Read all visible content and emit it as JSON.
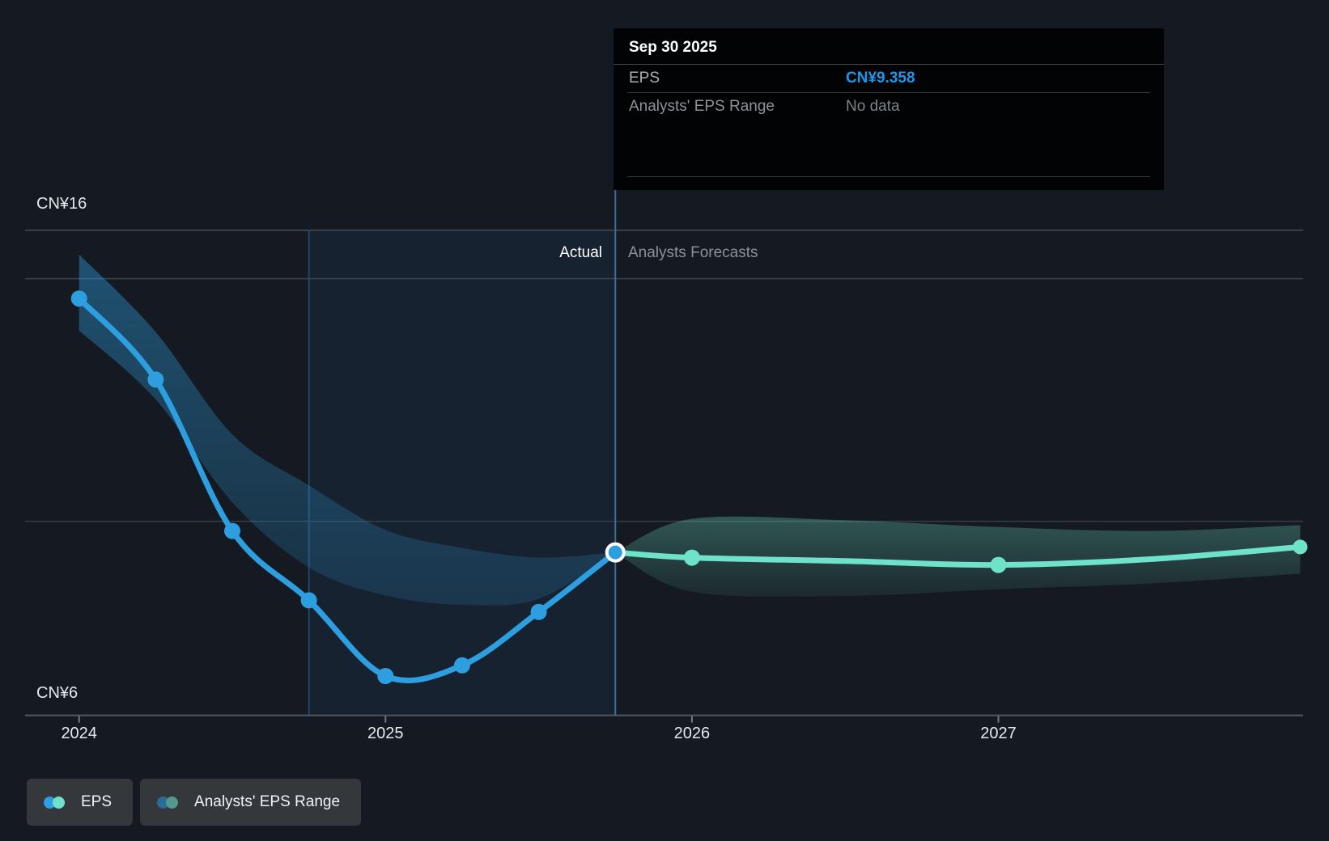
{
  "tooltip": {
    "date": "Sep 30 2025",
    "rows": [
      {
        "label": "EPS",
        "value": "CN¥9.358",
        "value_color": "#2196E8"
      },
      {
        "label": "Analysts' EPS Range",
        "value": "No data",
        "value_color": "#7C8389"
      }
    ]
  },
  "header": {
    "actual_label": "Actual",
    "forecast_label": "Analysts Forecasts"
  },
  "legend": [
    {
      "label": "EPS",
      "colors": [
        "#2D9FE1",
        "#6FE3C9"
      ]
    },
    {
      "label": "Analysts' EPS Range",
      "colors": [
        "#2B6B97",
        "#53998D"
      ]
    }
  ],
  "chart_data": {
    "type": "line",
    "title": "EPS actual vs analysts forecast",
    "currency": "CN¥",
    "ylim": [
      6,
      16
    ],
    "xlim": [
      2023.82,
      2028.0
    ],
    "grid": true,
    "legend_position": "bottom-left",
    "y_axis_labels": [
      {
        "label": "CN¥16",
        "value": 16
      },
      {
        "label": "CN¥6",
        "value": 6
      }
    ],
    "x_ticks": [
      {
        "label": "2024",
        "t": 2024
      },
      {
        "label": "2025",
        "t": 2025
      },
      {
        "label": "2026",
        "t": 2026
      },
      {
        "label": "2027",
        "t": 2027
      }
    ],
    "gridline_values": [
      16,
      15,
      10
    ],
    "highlight": {
      "start_t": 2024.75,
      "end_t": 2025.75,
      "fill": "rgba(47,143,211,0.08)"
    },
    "divider_t": 2025.75,
    "selected_point": {
      "t": 2025.75,
      "v": 9.358,
      "date": "Sep 30 2025"
    },
    "series": [
      {
        "name": "EPS (actual)",
        "color": "#2D9FE1",
        "points": [
          {
            "t": 2024.0,
            "v": 14.59,
            "dot": true
          },
          {
            "t": 2024.25,
            "v": 12.92,
            "dot": true
          },
          {
            "t": 2024.5,
            "v": 9.8,
            "dot": true
          },
          {
            "t": 2024.75,
            "v": 8.37,
            "dot": true
          },
          {
            "t": 2025.0,
            "v": 6.81,
            "dot": true
          },
          {
            "t": 2025.25,
            "v": 7.03,
            "dot": true
          },
          {
            "t": 2025.5,
            "v": 8.13,
            "dot": true
          },
          {
            "t": 2025.75,
            "v": 9.358,
            "dot": true,
            "ring": true
          }
        ]
      },
      {
        "name": "EPS (analysts forecast)",
        "color": "#6FE3C9",
        "points": [
          {
            "t": 2025.75,
            "v": 9.358,
            "dot": false
          },
          {
            "t": 2026.0,
            "v": 9.25,
            "dot": true
          },
          {
            "t": 2026.5,
            "v": 9.18,
            "dot": false
          },
          {
            "t": 2027.0,
            "v": 9.1,
            "dot": true
          },
          {
            "t": 2027.5,
            "v": 9.22,
            "dot": false
          },
          {
            "t": 2027.985,
            "v": 9.47,
            "dot": true,
            "small": true
          }
        ]
      }
    ],
    "bands": [
      {
        "name": "analysts-range-actual-period",
        "fill_top": "rgba(45,159,225,0.42)",
        "fill_bottom": "rgba(45,159,225,0.16)",
        "points": [
          {
            "t": 2024.0,
            "lo": 13.93,
            "hi": 15.5
          },
          {
            "t": 2024.25,
            "lo": 12.51,
            "hi": 13.9
          },
          {
            "t": 2024.5,
            "lo": 10.39,
            "hi": 11.79
          },
          {
            "t": 2024.75,
            "lo": 9.05,
            "hi": 10.74
          },
          {
            "t": 2025.0,
            "lo": 8.47,
            "hi": 9.82
          },
          {
            "t": 2025.25,
            "lo": 8.28,
            "hi": 9.45
          },
          {
            "t": 2025.5,
            "lo": 8.4,
            "hi": 9.25
          },
          {
            "t": 2025.75,
            "lo": 9.358,
            "hi": 9.358
          }
        ]
      },
      {
        "name": "analysts-eps-range-forecast",
        "fill_top": "rgba(111,227,201,0.30)",
        "fill_bottom": "rgba(111,227,201,0.08)",
        "points": [
          {
            "t": 2025.75,
            "lo": 9.358,
            "hi": 9.358
          },
          {
            "t": 2026.0,
            "lo": 8.55,
            "hi": 10.05
          },
          {
            "t": 2026.5,
            "lo": 8.46,
            "hi": 10.02
          },
          {
            "t": 2027.0,
            "lo": 8.6,
            "hi": 9.88
          },
          {
            "t": 2027.5,
            "lo": 8.72,
            "hi": 9.8
          },
          {
            "t": 2027.985,
            "lo": 8.92,
            "hi": 9.92
          }
        ]
      }
    ]
  }
}
